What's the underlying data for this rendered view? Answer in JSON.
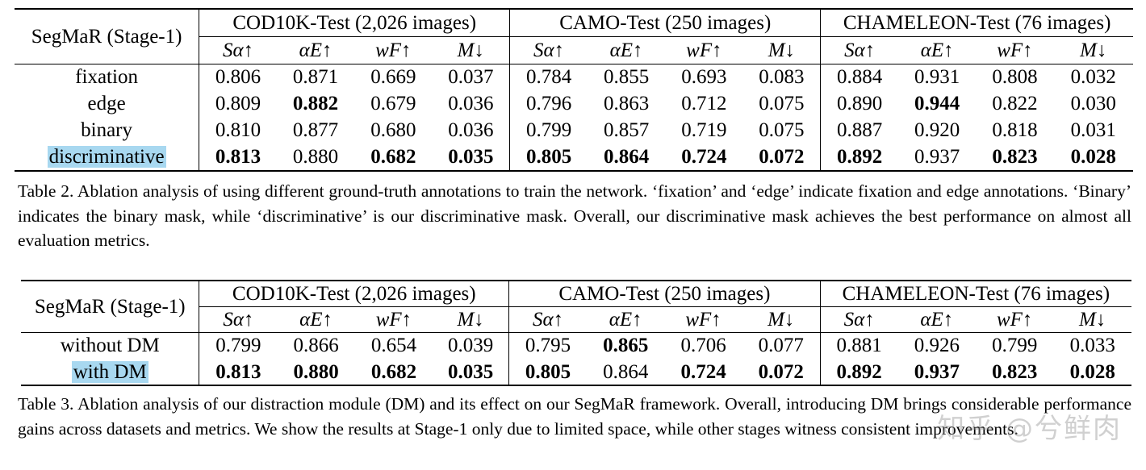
{
  "table2": {
    "row_header": "SegMaR (Stage-1)",
    "datasets": [
      "COD10K-Test (2,026 images)",
      "CAMO-Test (250 images)",
      "CHAMELEON-Test (76 images)"
    ],
    "metrics": [
      "Sα↑",
      "αE↑",
      "wF↑",
      "M↓"
    ],
    "rows": [
      {
        "label": "fixation",
        "values": [
          "0.806",
          "0.871",
          "0.669",
          "0.037",
          "0.784",
          "0.855",
          "0.693",
          "0.083",
          "0.884",
          "0.931",
          "0.808",
          "0.032"
        ]
      },
      {
        "label": "edge",
        "values": [
          "0.809",
          "0.882",
          "0.679",
          "0.036",
          "0.796",
          "0.863",
          "0.712",
          "0.075",
          "0.890",
          "0.944",
          "0.822",
          "0.030"
        ]
      },
      {
        "label": "binary",
        "values": [
          "0.810",
          "0.877",
          "0.680",
          "0.036",
          "0.799",
          "0.857",
          "0.719",
          "0.075",
          "0.887",
          "0.920",
          "0.818",
          "0.031"
        ]
      },
      {
        "label": "discriminative",
        "values": [
          "0.813",
          "0.880",
          "0.682",
          "0.035",
          "0.805",
          "0.864",
          "0.724",
          "0.072",
          "0.892",
          "0.937",
          "0.823",
          "0.028"
        ]
      }
    ],
    "caption": "Table 2.  Ablation analysis of using different ground-truth annotations to train the network.  ‘fixation’ and ‘edge’ indicate fixation and edge annotations. ‘Binary’ indicates the binary mask, while ‘discriminative’ is our discriminative mask. Overall, our discriminative mask achieves the best performance on almost all evaluation metrics."
  },
  "table3": {
    "row_header": "SegMaR (Stage-1)",
    "datasets": [
      "COD10K-Test (2,026 images)",
      "CAMO-Test (250 images)",
      "CHAMELEON-Test (76 images)"
    ],
    "metrics": [
      "Sα↑",
      "αE↑",
      "wF↑",
      "M↓"
    ],
    "rows": [
      {
        "label": "without DM",
        "values": [
          "0.799",
          "0.866",
          "0.654",
          "0.039",
          "0.795",
          "0.865",
          "0.706",
          "0.077",
          "0.881",
          "0.926",
          "0.799",
          "0.033"
        ]
      },
      {
        "label": "with DM",
        "values": [
          "0.813",
          "0.880",
          "0.682",
          "0.035",
          "0.805",
          "0.864",
          "0.724",
          "0.072",
          "0.892",
          "0.937",
          "0.823",
          "0.028"
        ]
      }
    ],
    "caption": "Table 3.  Ablation analysis of our distraction module (DM) and its effect on our SegMaR framework.  Overall, introducing DM brings considerable performance gains across datasets and metrics. We show the results at Stage-1 only due to limited space, while other stages witness consistent improvements."
  },
  "watermark": "知乎 @兮鲜肉",
  "colors": {
    "highlight": "#a8d8f0"
  }
}
